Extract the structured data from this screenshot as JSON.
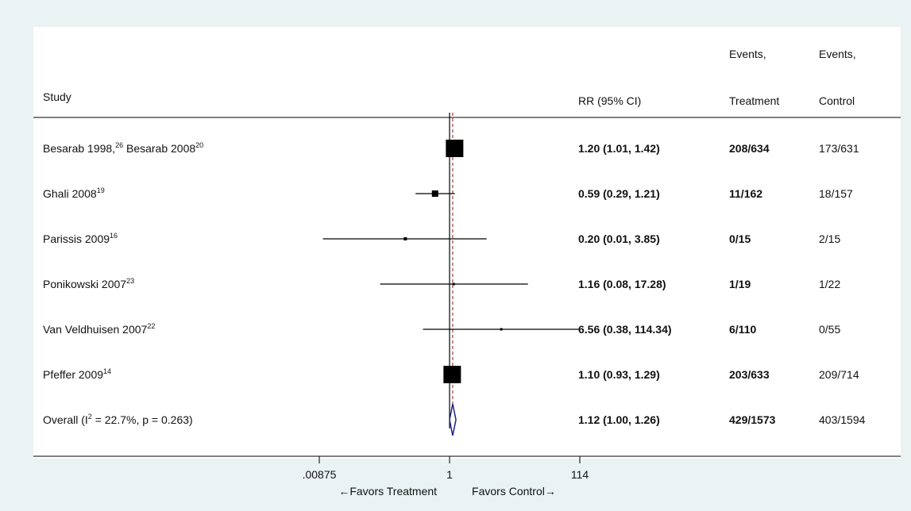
{
  "chart_data": {
    "type": "forest",
    "title": "",
    "headers": {
      "study": "Study",
      "rr": "RR (95% CI)",
      "events_treatment_top": "Events,",
      "events_treatment_bottom": "Treatment",
      "events_control_top": "Events,",
      "events_control_bottom": "Control"
    },
    "x_scale": "log",
    "x_range": [
      0.00875,
      114
    ],
    "x_ticks": [
      {
        "value": 0.00875,
        "label": ".00875"
      },
      {
        "value": 1,
        "label": "1"
      },
      {
        "value": 114,
        "label": "114"
      }
    ],
    "reference_value": 1,
    "overall_line_value": 1.12,
    "xlabel_left": "←Favors Treatment",
    "xlabel_right": "Favors Control→",
    "studies": [
      {
        "name": "Besarab 1998,",
        "sup1": "26",
        "name2": " Besarab 2008",
        "sup2": "20",
        "rr": 1.2,
        "lo": 1.01,
        "hi": 1.42,
        "rr_text": "1.20 (1.01, 1.42)",
        "events_t": "208/634",
        "events_c": "173/631",
        "weight_box": 22
      },
      {
        "name": "Ghali 2008",
        "sup1": "19",
        "name2": "",
        "sup2": "",
        "rr": 0.59,
        "lo": 0.29,
        "hi": 1.21,
        "rr_text": "0.59 (0.29, 1.21)",
        "events_t": "11/162",
        "events_c": "18/157",
        "weight_box": 8
      },
      {
        "name": "Parissis 2009",
        "sup1": "16",
        "name2": "",
        "sup2": "",
        "rr": 0.2,
        "lo": 0.01,
        "hi": 3.85,
        "rr_text": "0.20 (0.01, 3.85)",
        "events_t": "0/15",
        "events_c": "2/15",
        "weight_box": 4
      },
      {
        "name": "Ponikowski 2007",
        "sup1": "23",
        "name2": "",
        "sup2": "",
        "rr": 1.16,
        "lo": 0.08,
        "hi": 17.28,
        "rr_text": "1.16 (0.08, 17.28)",
        "events_t": "1/19",
        "events_c": "1/22",
        "weight_box": 3
      },
      {
        "name": "Van Veldhuisen 2007",
        "sup1": "22",
        "name2": "",
        "sup2": "",
        "rr": 6.56,
        "lo": 0.38,
        "hi": 114.34,
        "rr_text": "6.56 (0.38, 114.34)",
        "events_t": "6/110",
        "events_c": "0/55",
        "weight_box": 3
      },
      {
        "name": "Pfeffer 2009",
        "sup1": "14",
        "name2": "",
        "sup2": "",
        "rr": 1.1,
        "lo": 0.93,
        "hi": 1.29,
        "rr_text": "1.10 (0.93, 1.29)",
        "events_t": "203/633",
        "events_c": "209/714",
        "weight_box": 22
      }
    ],
    "overall": {
      "label_pre": "Overall  (I",
      "label_sup": "2",
      "label_post": " = 22.7%, p = 0.263)",
      "rr": 1.12,
      "lo": 1.0,
      "hi": 1.26,
      "rr_text": "1.12 (1.00, 1.26)",
      "events_t": "429/1573",
      "events_c": "403/1594"
    },
    "colors": {
      "box": "#000000",
      "diamond": "#1a237e",
      "overall_line": "#8b1a1a",
      "background": "#eaf2f3"
    }
  }
}
